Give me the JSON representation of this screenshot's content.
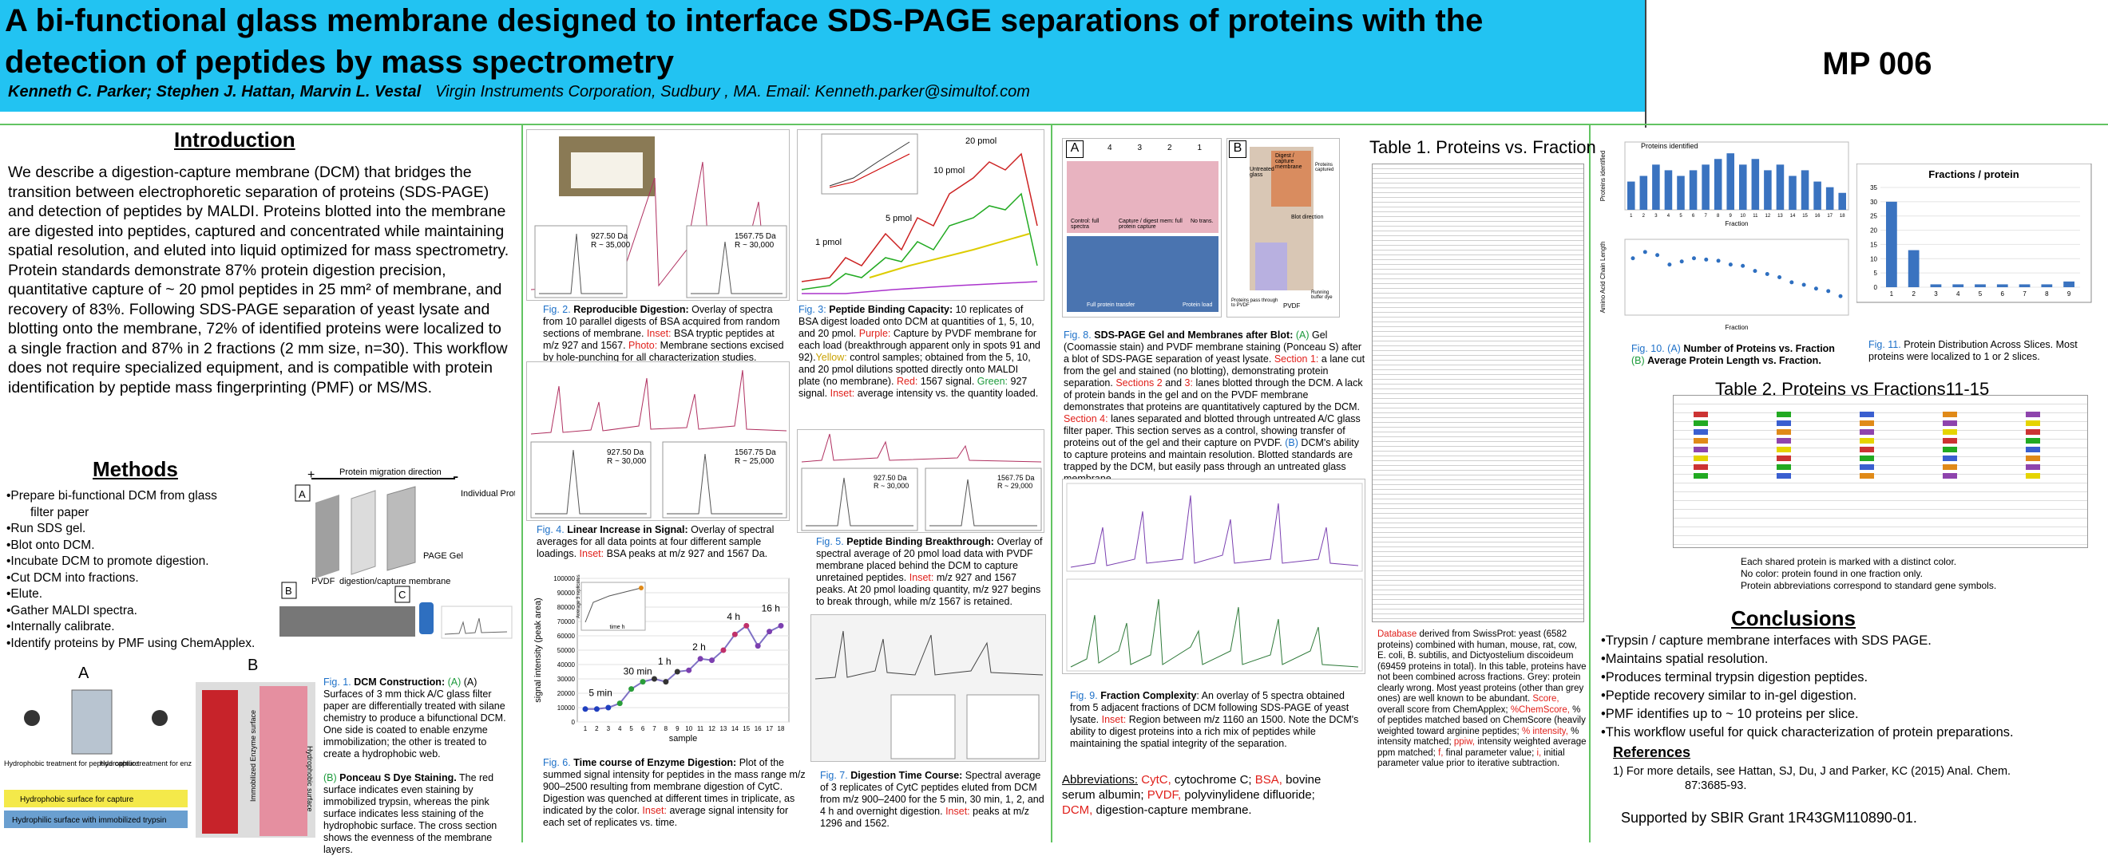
{
  "header": {
    "title_line1": "A bi-functional glass membrane designed to interface SDS-PAGE separations of proteins with the",
    "title_line2": "detection of peptides by mass spectrometry",
    "authors": "Kenneth C. Parker; Stephen J. Hattan, Marvin L. Vestal",
    "affiliation": "Virgin Instruments Corporation, Sudbury , MA.   Email: Kenneth.parker@simultof.com",
    "poster_id": "MP 006"
  },
  "intro": {
    "heading": "Introduction",
    "text": "We describe a digestion-capture membrane (DCM) that bridges the transition between electrophoretic separation of proteins (SDS-PAGE) and detection of peptides by MALDI. Proteins blotted into the membrane are digested into peptides, captured and concentrated while maintaining spatial resolution, and eluted into liquid optimized for mass spectrometry. Protein standards demonstrate 87% protein digestion precision, quantitative capture of ~ 20 pmol peptides in 25 mm² of membrane, and recovery of 83%. Following SDS-PAGE separation of yeast lysate and blotting onto the membrane, 72% of identified proteins were localized to a single fraction and 87% in 2 fractions (2 mm size, n=30). This workflow does not require specialized equipment, and is compatible with protein identification by peptide mass fingerprinting (PMF) or MS/MS."
  },
  "methods": {
    "heading": "Methods",
    "items": [
      "•Prepare bi-functional DCM from glass",
      "filter paper",
      "•Run SDS gel.",
      "•Blot onto DCM.",
      "•Incubate DCM to promote digestion.",
      "•Cut DCM into fractions.",
      "•Elute.",
      "•Gather MALDI spectra.",
      "•Internally calibrate.",
      "•Identify proteins by PMF using ChemApplex."
    ],
    "diagram_labels": {
      "migration": "Protein migration direction",
      "plus": "+",
      "minus": "-",
      "a": "A",
      "b": "B",
      "c": "C",
      "pvdf": "PVDF",
      "dcm": "digestion/capture membrane",
      "page": "PAGE Gel",
      "proteins": "Individual Proteins"
    },
    "fig_labels": {
      "a": "A",
      "b": "B",
      "hydrophobic": "Hydrophobic treatment for peptide capture",
      "hydrophilic": "Hydrophilic treatment for enzyme immobilization",
      "surface1": "Hydrophobic surface for capture",
      "surface2": "Hydrophilic surface with immobilized trypsin",
      "vert1": "Immobilized Enzyme surface",
      "vert2": "Hydrophobic surface"
    }
  },
  "fig1": {
    "label": "Fig. 1.",
    "title": "DCM Construction:",
    "a_text": "(A) Surfaces of 3 mm thick A/C glass filter paper are differentially treated with silane chemistry to produce a bifunctional DCM. One side is coated to enable enzyme immobilization; the other is treated to create a hydrophobic web.",
    "b_label": "(B)",
    "b_title": "Ponceau S Dye Staining.",
    "b_text": "The red surface indicates even staining by immobilized trypsin, whereas the pink surface indicates less staining of the hydrophobic surface. The cross section shows the evenness of the membrane layers."
  },
  "fig2": {
    "label": "Fig. 2.",
    "title": "Reproducible Digestion:",
    "text": "Overlay of spectra from 10 parallel digests of BSA acquired from random sections of membrane.",
    "inset_label": "Inset:",
    "inset_text": "BSA tryptic peptides at m/z 927 and 1567.",
    "photo_label": "Photo:",
    "photo_text": "Membrane sections excised by hole-punching for all characterization studies.",
    "peak1": "927.50 Da",
    "peak1_r": "R ~ 35,000",
    "peak2": "1567.75 Da",
    "peak2_r": "R ~ 30,000"
  },
  "fig3": {
    "label": "Fig. 3:",
    "title": "Peptide Binding Capacity:",
    "text": "10 replicates of BSA digest loaded onto DCM at quantities of 1, 5, 10, and 20 pmol.",
    "purple_label": "Purple:",
    "purple_text": "Capture by PVDF membrane for each load (breakthrough apparent only in spots 91 and 92).",
    "yellow_label": "Yellow:",
    "yellow_text": "control samples; obtained from the 5, 10, and 20 pmol dilutions spotted directly onto MALDI plate (no membrane).",
    "red_label": "Red:",
    "red_text": "1567 signal.",
    "green_label": "Green:",
    "green_text": "927 signal.",
    "inset_label": "Inset:",
    "inset_text": "average intensity vs. the quantity loaded.",
    "loads": [
      "1 pmol",
      "5 pmol",
      "10 pmol",
      "20 pmol"
    ]
  },
  "fig4": {
    "label": "Fig. 4.",
    "title": "Linear Increase in Signal:",
    "text": "Overlay of spectral averages for all data points at four different sample loadings.",
    "inset_label": "Inset:",
    "inset_text": "BSA peaks at m/z 927 and 1567 Da.",
    "peak1": "927.50 Da",
    "peak1_r": "R ~ 30,000",
    "peak2": "1567.75 Da",
    "peak2_r": "R ~ 25,000"
  },
  "fig5": {
    "label": "Fig. 5.",
    "title": "Peptide Binding Breakthrough:",
    "text": "Overlay of spectral average of 20 pmol load data with PVDF membrane placed behind the DCM to capture unretained peptides.",
    "inset_label": "Inset:",
    "inset_text": "m/z 927 and 1567 peaks. At 20 pmol loading quantity, m/z 927 begins to break through, while m/z 1567 is retained.",
    "peak1": "927.50 Da",
    "peak1_r": "R ~ 30,000",
    "peak2": "1567.75 Da",
    "peak2_r": "R ~ 29,000"
  },
  "fig6": {
    "label": "Fig. 6.",
    "title": "Time course of Enzyme Digestion:",
    "text": "Plot of the summed signal intensity for peptides in the mass range m/z 900–2500 resulting from membrane digestion of CytC. Digestion was quenched at different times in triplicate, as indicated by the color.",
    "inset_label": "Inset:",
    "inset_text": "average signal intensity for each set of replicates vs. time."
  },
  "fig7": {
    "label": "Fig. 7.",
    "title": "Digestion Time Course:",
    "text": "Spectral average of 3 replicates of CytC peptides eluted from DCM from m/z 900–2400 for the 5 min, 30 min, 1, 2, and 4 h and overnight digestion.",
    "inset_label": "Inset:",
    "inset_text": "peaks at m/z 1296 and 1562."
  },
  "fig8": {
    "label": "Fig. 8.",
    "title": "SDS-PAGE Gel and Membranes after Blot:",
    "a_label": "(A)",
    "a_text": "Gel (Coomassie stain) and PVDF membrane staining (Ponceau S) after a blot of SDS-PAGE separation of yeast lysate.",
    "s1": "Section 1:",
    "s1_text": "a lane cut from the gel and stained (no blotting), demonstrating protein separation.",
    "s23": "Sections 2",
    "and": "and",
    "s3": "3:",
    "s23_text": "lanes blotted through the DCM. A lack of protein bands in the gel and on the PVDF membrane demonstrates that proteins are quantitatively captured by the DCM.",
    "s4": "Section 4:",
    "s4_text": "lanes separated and blotted through untreated A/C glass filter paper. This section serves as a control, showing transfer of proteins out of the gel and their capture on PVDF.",
    "b_label": "(B)",
    "b_text": "DCM's ability to capture proteins and maintain resolution. Blotted standards are trapped by the DCM, but easily pass through an untreated glass membrane.",
    "panel_a": "A",
    "panel_b": "B",
    "lanes": [
      "4",
      "3",
      "2",
      "1"
    ],
    "gel_labels": [
      "Control: full spectra",
      "Capture / digest mem: full protein capture",
      "No trans.",
      "Full protein transfer",
      "Protein load"
    ],
    "b_labels": [
      "Untreated glass",
      "Digest / capture membrane",
      "Blot direction",
      "PVDF",
      "Proteins pass through to PVDF",
      "Proteins captured",
      "Running buffer dye"
    ]
  },
  "fig9": {
    "label": "Fig. 9.",
    "title": "Fraction Complexity",
    "text": ": An overlay of 5 spectra obtained from 5 adjacent fractions of DCM following SDS-PAGE of yeast lysate.",
    "inset_label": "Inset:",
    "inset_text": "Region between m/z 1160 an 1500. Note the DCM's ability to digest proteins into a rich mix of peptides while maintaining the spatial integrity of the separation."
  },
  "abbrev": {
    "label": "Abbreviations:",
    "cytc": "CytC,",
    "cytc_t": "cytochrome C;",
    "bsa": "BSA,",
    "bsa_t": "bovine serum albumin;",
    "pvdf": "PVDF,",
    "pvdf_t": "polyvinylidene difluoride;",
    "dcm": "DCM,",
    "dcm_t": "digestion-capture membrane."
  },
  "table1": {
    "title": "Table 1. Proteins vs. Fraction",
    "db_label": "Database",
    "db_text": "derived from SwissProt: yeast (6582 proteins) combined with human, mouse, rat, cow, E. coli, B. subtilis, and Dictyostelium discoideum (69459 proteins in total). In this table, proteins have not been combined across fractions. Grey: protein clearly wrong. Most yeast proteins (other than grey ones) are well known to be abundant.",
    "score_label": "Score,",
    "score_text": "overall score from ChemApplex;",
    "chem_label": "%ChemScore,",
    "chem_text": "% of peptides matched based on ChemScore (heavily weighted toward arginine peptides;",
    "int_label": "% intensity,",
    "int_text": "% intensity matched;",
    "ppiw_label": "ppiw,",
    "ppiw_text": "intensity weighted average ppm matched;",
    "f_label": "f,",
    "f_text": "final parameter value;",
    "i_label": "i,",
    "i_text": "initial parameter value prior to iterative subtraction."
  },
  "fig10": {
    "label": "Fig. 10.",
    "a_label": "(A)",
    "a_text": "Number of Proteins vs. Fraction",
    "b_label": "(B)",
    "b_text": "Average Protein Length vs. Fraction.",
    "chart_title": "Proteins identified",
    "ylabel_a": "Proteins identified",
    "xlabel": "Fraction",
    "ylabel_b": "Amino Acid Chain Length"
  },
  "fig11": {
    "label": "Fig. 11.",
    "text": "Protein Distribution Across Slices. Most proteins were localized to 1 or 2 slices.",
    "chart_title": "Fractions / protein"
  },
  "table2": {
    "title": "Table 2. Proteins vs Fractions11-15",
    "notes": [
      "Each shared protein is marked with a distinct color.",
      "No color:  protein found in one fraction only.",
      "Protein abbreviations correspond to standard gene symbols."
    ]
  },
  "conclusions": {
    "heading": "Conclusions",
    "items": [
      "•Trypsin / capture membrane interfaces with SDS PAGE.",
      "•Maintains spatial resolution.",
      "•Produces terminal trypsin digestion peptides.",
      "•Peptide recovery similar to in-gel digestion.",
      "•PMF identifies up to ~ 10 proteins per slice.",
      "•This workflow useful for quick characterization of protein preparations."
    ]
  },
  "references": {
    "heading": "References",
    "item": "1)  For more details, see Hattan, SJ, Du, J and Parker, KC (2015) Anal. Chem.",
    "item2": "87:3685-93."
  },
  "support": "Supported by SBIR Grant  1R43GM110890-01.",
  "chart_data": [
    {
      "type": "line",
      "title": "",
      "xlabel": "sample",
      "ylabel": "signal intensity (peak area)",
      "x": [
        1,
        2,
        3,
        4,
        5,
        6,
        7,
        8,
        9,
        10,
        11,
        12,
        13,
        14,
        15,
        16,
        17,
        18
      ],
      "values": [
        9000,
        9000,
        10000,
        13000,
        23000,
        28000,
        30000,
        28000,
        35000,
        36000,
        44000,
        43000,
        50000,
        61000,
        67000,
        53000,
        63000,
        67000
      ],
      "ylim": [
        0,
        100000
      ],
      "xtick_labels": [
        "1",
        "2",
        "3",
        "4",
        "5",
        "6",
        "7",
        "8",
        "9",
        "10",
        "11",
        "12",
        "13",
        "14",
        "15",
        "16",
        "17",
        "18"
      ],
      "ytick_labels": [
        "0",
        "10000",
        "20000",
        "30000",
        "40000",
        "50000",
        "60000",
        "70000",
        "80000",
        "90000",
        "100000"
      ],
      "annotations": [
        "5 min",
        "30 min",
        "1 h",
        "2 h",
        "4 h",
        "16 h"
      ],
      "inset": {
        "xlabel": "time h",
        "ylabel": "Average 3 replicates"
      }
    },
    {
      "type": "bar",
      "title": "Proteins identified",
      "xlabel": "Fraction",
      "ylabel": "Proteins identified",
      "categories": [
        "1",
        "2",
        "3",
        "4",
        "5",
        "6",
        "7",
        "8",
        "9",
        "10",
        "11",
        "12",
        "13",
        "14",
        "15",
        "16",
        "17",
        "18"
      ],
      "values": [
        5,
        6,
        8,
        7,
        6,
        7,
        8,
        9,
        10,
        8,
        9,
        7,
        8,
        6,
        7,
        5,
        4,
        3
      ]
    },
    {
      "type": "scatter",
      "title": "",
      "xlabel": "Fraction",
      "ylabel": "Amino Acid Chain Length",
      "x": [
        1,
        2,
        3,
        4,
        5,
        6,
        7,
        8,
        9,
        10,
        11,
        12,
        13,
        14,
        15,
        16,
        17,
        18
      ],
      "values": [
        900,
        1000,
        950,
        800,
        850,
        900,
        880,
        860,
        800,
        780,
        700,
        650,
        600,
        520,
        480,
        420,
        380,
        300
      ]
    },
    {
      "type": "bar",
      "title": "Fractions / protein",
      "xlabel": "",
      "ylabel": "",
      "categories": [
        "1",
        "2",
        "3",
        "4",
        "5",
        "6",
        "7",
        "8",
        "9"
      ],
      "values": [
        30,
        13,
        1,
        1,
        1,
        1,
        1,
        1,
        2
      ],
      "ylim": [
        0,
        35
      ],
      "ytick_labels": [
        "0",
        "5",
        "10",
        "15",
        "20",
        "25",
        "30",
        "35"
      ]
    }
  ]
}
